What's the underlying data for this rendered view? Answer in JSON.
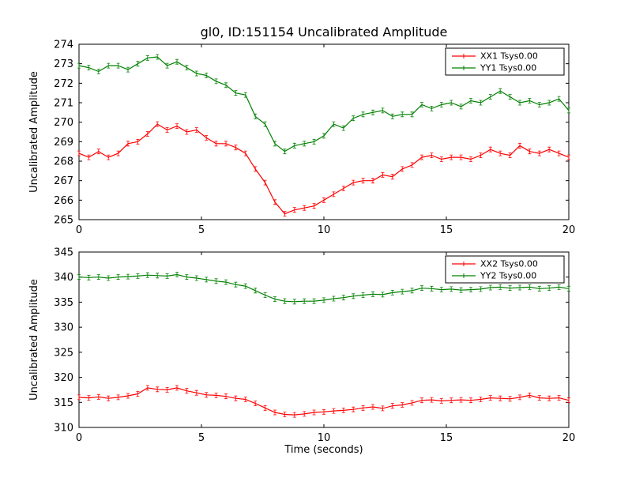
{
  "figure": {
    "title": "gl0, ID:151154 Uncalibrated Amplitude",
    "xlabel": "Time (seconds)",
    "background": "#ffffff",
    "frame_color": "#000000"
  },
  "colors": {
    "xx": "#ff0000",
    "yy": "#008000"
  },
  "chart_data": [
    {
      "type": "line",
      "title": "gl0, ID:151154 Uncalibrated Amplitude",
      "xlabel": "",
      "ylabel": "Uncalibrated Amplitude",
      "xlim": [
        0,
        20
      ],
      "ylim": [
        265,
        274
      ],
      "xticks": [
        0,
        5,
        10,
        15,
        20
      ],
      "yticks": [
        265,
        266,
        267,
        268,
        269,
        270,
        271,
        272,
        273,
        274
      ],
      "grid": false,
      "legend_position": "upper right",
      "x": [
        0,
        0.4,
        0.8,
        1.2,
        1.6,
        2,
        2.4,
        2.8,
        3.2,
        3.6,
        4,
        4.4,
        4.8,
        5.2,
        5.6,
        6,
        6.4,
        6.8,
        7.2,
        7.6,
        8,
        8.4,
        8.8,
        9.2,
        9.6,
        10,
        10.4,
        10.8,
        11.2,
        11.6,
        12,
        12.4,
        12.8,
        13.2,
        13.6,
        14,
        14.4,
        14.8,
        15.2,
        15.6,
        16,
        16.4,
        16.8,
        17.2,
        17.6,
        18,
        18.4,
        18.8,
        19.2,
        19.6,
        20
      ],
      "series": [
        {
          "name": "XX1 Tsys0.00",
          "color": "#ff0000",
          "yerr": 0.12,
          "values": [
            268.4,
            268.2,
            268.5,
            268.2,
            268.4,
            268.9,
            269.0,
            269.4,
            269.9,
            269.6,
            269.8,
            269.5,
            269.6,
            269.2,
            268.9,
            268.9,
            268.7,
            268.4,
            267.6,
            266.9,
            265.9,
            265.3,
            265.5,
            265.6,
            265.7,
            266.0,
            266.3,
            266.6,
            266.9,
            267.0,
            267.0,
            267.3,
            267.2,
            267.6,
            267.8,
            268.2,
            268.3,
            268.1,
            268.2,
            268.2,
            268.1,
            268.3,
            268.6,
            268.4,
            268.3,
            268.8,
            268.5,
            268.4,
            268.6,
            268.4,
            268.2
          ]
        },
        {
          "name": "YY1 Tsys0.00",
          "color": "#008000",
          "yerr": 0.12,
          "values": [
            272.9,
            272.8,
            272.6,
            272.9,
            272.9,
            272.7,
            273.0,
            273.3,
            273.35,
            272.9,
            273.1,
            272.8,
            272.5,
            272.4,
            272.1,
            271.9,
            271.5,
            271.4,
            270.3,
            269.9,
            268.9,
            268.5,
            268.8,
            268.9,
            269.0,
            269.3,
            269.9,
            269.7,
            270.2,
            270.4,
            270.5,
            270.6,
            270.3,
            270.4,
            270.4,
            270.9,
            270.7,
            270.9,
            271.0,
            270.8,
            271.1,
            271.0,
            271.3,
            271.6,
            271.3,
            271.0,
            271.1,
            270.9,
            271.0,
            271.2,
            270.6
          ]
        }
      ]
    },
    {
      "type": "line",
      "title": "",
      "xlabel": "Time (seconds)",
      "ylabel": "Uncalibrated Amplitude",
      "xlim": [
        0,
        20
      ],
      "ylim": [
        310,
        345
      ],
      "xticks": [
        0,
        5,
        10,
        15,
        20
      ],
      "yticks": [
        310,
        315,
        320,
        325,
        330,
        335,
        340,
        345
      ],
      "grid": false,
      "legend_position": "upper right",
      "x": [
        0,
        0.4,
        0.8,
        1.2,
        1.6,
        2,
        2.4,
        2.8,
        3.2,
        3.6,
        4,
        4.4,
        4.8,
        5.2,
        5.6,
        6,
        6.4,
        6.8,
        7.2,
        7.6,
        8,
        8.4,
        8.8,
        9.2,
        9.6,
        10,
        10.4,
        10.8,
        11.2,
        11.6,
        12,
        12.4,
        12.8,
        13.2,
        13.6,
        14,
        14.4,
        14.8,
        15.2,
        15.6,
        16,
        16.4,
        16.8,
        17.2,
        17.6,
        18,
        18.4,
        18.8,
        19.2,
        19.6,
        20
      ],
      "series": [
        {
          "name": "XX2 Tsys0.00",
          "color": "#ff0000",
          "yerr": 0.4,
          "values": [
            316.0,
            315.9,
            316.1,
            315.8,
            316.0,
            316.3,
            316.7,
            317.9,
            317.6,
            317.5,
            317.9,
            317.3,
            316.9,
            316.5,
            316.4,
            316.2,
            315.8,
            315.6,
            314.8,
            313.9,
            313.0,
            312.6,
            312.5,
            312.7,
            313.0,
            313.1,
            313.3,
            313.4,
            313.6,
            313.9,
            314.1,
            313.8,
            314.3,
            314.5,
            314.9,
            315.4,
            315.5,
            315.3,
            315.4,
            315.5,
            315.4,
            315.6,
            315.9,
            315.8,
            315.7,
            316.0,
            316.4,
            315.9,
            315.8,
            315.9,
            315.4
          ]
        },
        {
          "name": "YY2 Tsys0.00",
          "color": "#008000",
          "yerr": 0.4,
          "values": [
            340.0,
            339.9,
            340.0,
            339.8,
            340.0,
            340.1,
            340.2,
            340.4,
            340.3,
            340.2,
            340.5,
            340.0,
            339.8,
            339.5,
            339.2,
            339.0,
            338.5,
            338.2,
            337.3,
            336.4,
            335.6,
            335.2,
            335.1,
            335.2,
            335.2,
            335.4,
            335.7,
            335.9,
            336.2,
            336.4,
            336.6,
            336.5,
            336.9,
            337.1,
            337.3,
            337.8,
            337.7,
            337.5,
            337.6,
            337.4,
            337.5,
            337.6,
            337.9,
            338.0,
            337.8,
            337.9,
            338.0,
            337.7,
            337.8,
            338.0,
            337.7
          ]
        }
      ]
    }
  ]
}
